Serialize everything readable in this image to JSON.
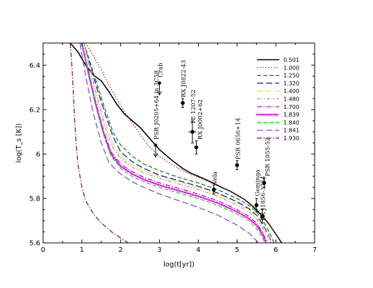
{
  "chart_data": {
    "type": "line",
    "title": "",
    "xlabel": "log(t[yr])",
    "ylabel": "log(T_s [K])",
    "xlim": [
      0,
      7
    ],
    "ylim": [
      5.6,
      6.5
    ],
    "xticks": [
      "0",
      "1",
      "2",
      "3",
      "4",
      "5",
      "6",
      "7"
    ],
    "yticks": [
      "5.6",
      "5.8",
      "6",
      "6.2",
      "6.4"
    ],
    "grid": false,
    "legend": "top-right",
    "series": [
      {
        "name": "0.501",
        "color": "#000000",
        "dash": "solid",
        "width": 1.6,
        "points": [
          [
            0.7,
            6.5
          ],
          [
            0.9,
            6.46
          ],
          [
            1.1,
            6.4
          ],
          [
            1.3,
            6.355
          ],
          [
            1.5,
            6.33
          ],
          [
            1.7,
            6.28
          ],
          [
            1.9,
            6.225
          ],
          [
            2.1,
            6.18
          ],
          [
            2.3,
            6.15
          ],
          [
            2.5,
            6.12
          ],
          [
            2.7,
            6.08
          ],
          [
            3.0,
            6.02
          ],
          [
            3.3,
            5.975
          ],
          [
            3.6,
            5.935
          ],
          [
            3.8,
            5.915
          ],
          [
            4.0,
            5.9
          ],
          [
            4.2,
            5.885
          ],
          [
            4.4,
            5.868
          ],
          [
            4.6,
            5.85
          ],
          [
            4.8,
            5.835
          ],
          [
            5.0,
            5.815
          ],
          [
            5.2,
            5.795
          ],
          [
            5.4,
            5.765
          ],
          [
            5.6,
            5.73
          ],
          [
            5.8,
            5.69
          ],
          [
            6.0,
            5.64
          ],
          [
            6.15,
            5.6
          ]
        ]
      },
      {
        "name": "1.000",
        "color": "#cc0000",
        "dash": "dot",
        "width": 1.2,
        "points": [
          [
            1.1,
            6.5
          ],
          [
            1.3,
            6.44
          ],
          [
            1.5,
            6.38
          ],
          [
            1.7,
            6.31
          ],
          [
            1.9,
            6.25
          ],
          [
            2.1,
            6.19
          ],
          [
            2.3,
            6.14
          ],
          [
            2.5,
            6.09
          ],
          [
            2.7,
            6.04
          ],
          [
            3.0,
            5.99
          ],
          [
            3.3,
            5.955
          ],
          [
            3.6,
            5.925
          ],
          [
            4.0,
            5.895
          ],
          [
            4.4,
            5.865
          ],
          [
            4.8,
            5.835
          ],
          [
            5.2,
            5.795
          ],
          [
            5.5,
            5.755
          ],
          [
            5.8,
            5.69
          ],
          [
            6.0,
            5.64
          ],
          [
            6.15,
            5.6
          ]
        ]
      },
      {
        "name": "1.250",
        "color": "#008000",
        "dash": "dash",
        "width": 1.2,
        "points": [
          [
            1.05,
            6.5
          ],
          [
            1.2,
            6.42
          ],
          [
            1.4,
            6.31
          ],
          [
            1.6,
            6.2
          ],
          [
            1.8,
            6.1
          ],
          [
            2.0,
            6.04
          ],
          [
            2.3,
            5.99
          ],
          [
            2.6,
            5.955
          ],
          [
            3.0,
            5.925
          ],
          [
            3.5,
            5.895
          ],
          [
            4.0,
            5.87
          ],
          [
            4.5,
            5.84
          ],
          [
            5.0,
            5.8
          ],
          [
            5.3,
            5.77
          ],
          [
            5.5,
            5.74
          ],
          [
            5.7,
            5.69
          ],
          [
            5.85,
            5.64
          ],
          [
            5.95,
            5.6
          ]
        ]
      },
      {
        "name": "1.320",
        "color": "#0000ee",
        "dash": "longdash",
        "width": 1.2,
        "points": [
          [
            1.05,
            6.5
          ],
          [
            1.2,
            6.41
          ],
          [
            1.4,
            6.29
          ],
          [
            1.6,
            6.18
          ],
          [
            1.8,
            6.08
          ],
          [
            2.0,
            6.01
          ],
          [
            2.3,
            5.965
          ],
          [
            2.6,
            5.935
          ],
          [
            3.0,
            5.905
          ],
          [
            3.5,
            5.88
          ],
          [
            4.0,
            5.855
          ],
          [
            4.5,
            5.825
          ],
          [
            5.0,
            5.785
          ],
          [
            5.3,
            5.755
          ],
          [
            5.5,
            5.725
          ],
          [
            5.65,
            5.685
          ],
          [
            5.8,
            5.64
          ],
          [
            5.9,
            5.6
          ]
        ]
      },
      {
        "name": "1.400",
        "color": "#ffdd00",
        "dash": "dashdot",
        "width": 1.2,
        "points": [
          [
            1.05,
            6.5
          ],
          [
            1.2,
            6.4
          ],
          [
            1.4,
            6.26
          ],
          [
            1.6,
            6.14
          ],
          [
            1.8,
            6.05
          ],
          [
            2.0,
            5.99
          ],
          [
            2.3,
            5.95
          ],
          [
            2.6,
            5.925
          ],
          [
            3.0,
            5.9
          ],
          [
            3.5,
            5.875
          ],
          [
            4.0,
            5.85
          ],
          [
            4.5,
            5.82
          ],
          [
            5.0,
            5.78
          ],
          [
            5.3,
            5.75
          ],
          [
            5.5,
            5.72
          ],
          [
            5.65,
            5.68
          ],
          [
            5.8,
            5.635
          ],
          [
            5.9,
            5.6
          ]
        ]
      },
      {
        "name": "1.480",
        "color": "#999999",
        "dash": "dashdot2",
        "width": 1.2,
        "points": [
          [
            1.05,
            6.5
          ],
          [
            1.2,
            6.39
          ],
          [
            1.4,
            6.25
          ],
          [
            1.6,
            6.12
          ],
          [
            1.8,
            6.03
          ],
          [
            2.0,
            5.98
          ],
          [
            2.3,
            5.94
          ],
          [
            2.6,
            5.915
          ],
          [
            3.0,
            5.89
          ],
          [
            3.5,
            5.865
          ],
          [
            4.0,
            5.84
          ],
          [
            4.5,
            5.81
          ],
          [
            5.0,
            5.77
          ],
          [
            5.3,
            5.74
          ],
          [
            5.5,
            5.71
          ],
          [
            5.65,
            5.67
          ],
          [
            5.8,
            5.625
          ],
          [
            5.88,
            5.6
          ]
        ]
      },
      {
        "name": "1.700",
        "color": "#9900cc",
        "dash": "dashdot",
        "width": 1.2,
        "points": [
          [
            1.0,
            6.5
          ],
          [
            1.15,
            6.39
          ],
          [
            1.35,
            6.24
          ],
          [
            1.55,
            6.11
          ],
          [
            1.75,
            6.01
          ],
          [
            2.0,
            5.955
          ],
          [
            2.3,
            5.92
          ],
          [
            2.6,
            5.895
          ],
          [
            3.0,
            5.87
          ],
          [
            3.5,
            5.845
          ],
          [
            4.0,
            5.82
          ],
          [
            4.5,
            5.79
          ],
          [
            5.0,
            5.75
          ],
          [
            5.3,
            5.72
          ],
          [
            5.5,
            5.69
          ],
          [
            5.65,
            5.65
          ],
          [
            5.78,
            5.6
          ]
        ]
      },
      {
        "name": "1.839",
        "color": "#ff00ff",
        "dash": "dot",
        "width": 2.4,
        "points": [
          [
            1.0,
            6.5
          ],
          [
            1.15,
            6.38
          ],
          [
            1.35,
            6.23
          ],
          [
            1.55,
            6.1
          ],
          [
            1.75,
            6.0
          ],
          [
            2.0,
            5.945
          ],
          [
            2.3,
            5.91
          ],
          [
            2.6,
            5.885
          ],
          [
            3.0,
            5.86
          ],
          [
            3.5,
            5.835
          ],
          [
            4.0,
            5.81
          ],
          [
            4.5,
            5.78
          ],
          [
            5.0,
            5.74
          ],
          [
            5.3,
            5.71
          ],
          [
            5.5,
            5.68
          ],
          [
            5.65,
            5.64
          ],
          [
            5.75,
            5.6
          ]
        ]
      },
      {
        "name": "1.840",
        "color": "#00ee00",
        "dash": "dash",
        "width": 1.2,
        "points": [
          [
            1.0,
            6.5
          ],
          [
            1.15,
            6.37
          ],
          [
            1.35,
            6.22
          ],
          [
            1.55,
            6.09
          ],
          [
            1.75,
            5.99
          ],
          [
            2.0,
            5.935
          ],
          [
            2.3,
            5.9
          ],
          [
            2.6,
            5.875
          ],
          [
            3.0,
            5.85
          ],
          [
            3.5,
            5.825
          ],
          [
            4.0,
            5.8
          ],
          [
            4.5,
            5.77
          ],
          [
            5.0,
            5.73
          ],
          [
            5.3,
            5.7
          ],
          [
            5.5,
            5.665
          ],
          [
            5.65,
            5.625
          ],
          [
            5.72,
            5.6
          ]
        ]
      },
      {
        "name": "1.841",
        "color": "#7b3fdc",
        "dash": "longdash",
        "width": 1.2,
        "points": [
          [
            0.95,
            6.5
          ],
          [
            1.1,
            6.35
          ],
          [
            1.3,
            6.18
          ],
          [
            1.5,
            6.05
          ],
          [
            1.7,
            5.96
          ],
          [
            2.0,
            5.91
          ],
          [
            2.3,
            5.875
          ],
          [
            2.6,
            5.85
          ],
          [
            3.0,
            5.82
          ],
          [
            3.5,
            5.79
          ],
          [
            4.0,
            5.76
          ],
          [
            4.5,
            5.725
          ],
          [
            5.0,
            5.68
          ],
          [
            5.3,
            5.645
          ],
          [
            5.5,
            5.61
          ],
          [
            5.55,
            5.6
          ]
        ]
      },
      {
        "name": "1.930",
        "color": "#800040",
        "dash": "dashdot",
        "width": 1.2,
        "points": [
          [
            0.7,
            6.5
          ],
          [
            0.75,
            6.38
          ],
          [
            0.8,
            6.2
          ],
          [
            0.85,
            6.05
          ],
          [
            0.9,
            5.95
          ],
          [
            1.0,
            5.85
          ],
          [
            1.1,
            5.79
          ],
          [
            1.3,
            5.73
          ],
          [
            1.5,
            5.69
          ],
          [
            1.8,
            5.645
          ],
          [
            2.1,
            5.61
          ],
          [
            2.2,
            5.6
          ]
        ]
      }
    ],
    "observations": [
      {
        "label": "Crab",
        "x": 3.0,
        "y": 6.32,
        "upper_limit": true,
        "xerr": 0,
        "yerr": 0,
        "lx": 3.02,
        "ly": 6.345
      },
      {
        "label": "RX J0822-43",
        "x": 3.6,
        "y": 6.23,
        "xerr": 0.05,
        "yerr": 0.02,
        "lx": 3.62,
        "ly": 6.255
      },
      {
        "label": "1E 1207-52",
        "x": 3.85,
        "y": 6.1,
        "xerr": 0.1,
        "yerr": 0.05,
        "lx": 3.87,
        "ly": 6.135
      },
      {
        "label": "RX J0002+62",
        "x": 3.95,
        "y": 6.03,
        "xerr": 0.05,
        "yerr": 0.03,
        "lx": 4.05,
        "ly": 6.065
      },
      {
        "label": "PSR J0205+64 in 3C58",
        "x": 2.9,
        "y": 6.04,
        "upper_limit": true,
        "xerr": 0,
        "yerr": 0,
        "lx": 2.92,
        "ly": 6.065
      },
      {
        "label": "PSR 0656+14",
        "x": 5.0,
        "y": 5.95,
        "xerr": 0.03,
        "yerr": 0.02,
        "lx": 5.02,
        "ly": 5.975
      },
      {
        "label": "Vela",
        "x": 4.4,
        "y": 5.84,
        "xerr": 0.05,
        "yerr": 0.02,
        "lx": 4.42,
        "ly": 5.865
      },
      {
        "label": "Geminga",
        "x": 5.5,
        "y": 5.77,
        "xerr": 0.03,
        "yerr": 0.03,
        "lx": 5.52,
        "ly": 5.81
      },
      {
        "label": "PSR 1055-52",
        "x": 5.7,
        "y": 5.87,
        "xerr": 0.03,
        "yerr": 0.02,
        "lx": 5.78,
        "ly": 5.9
      },
      {
        "label": "RX J1856-3754",
        "x": 5.65,
        "y": 5.72,
        "xerr": 0.05,
        "yerr": 0.03,
        "lx": 5.67,
        "ly": 5.7
      }
    ]
  }
}
